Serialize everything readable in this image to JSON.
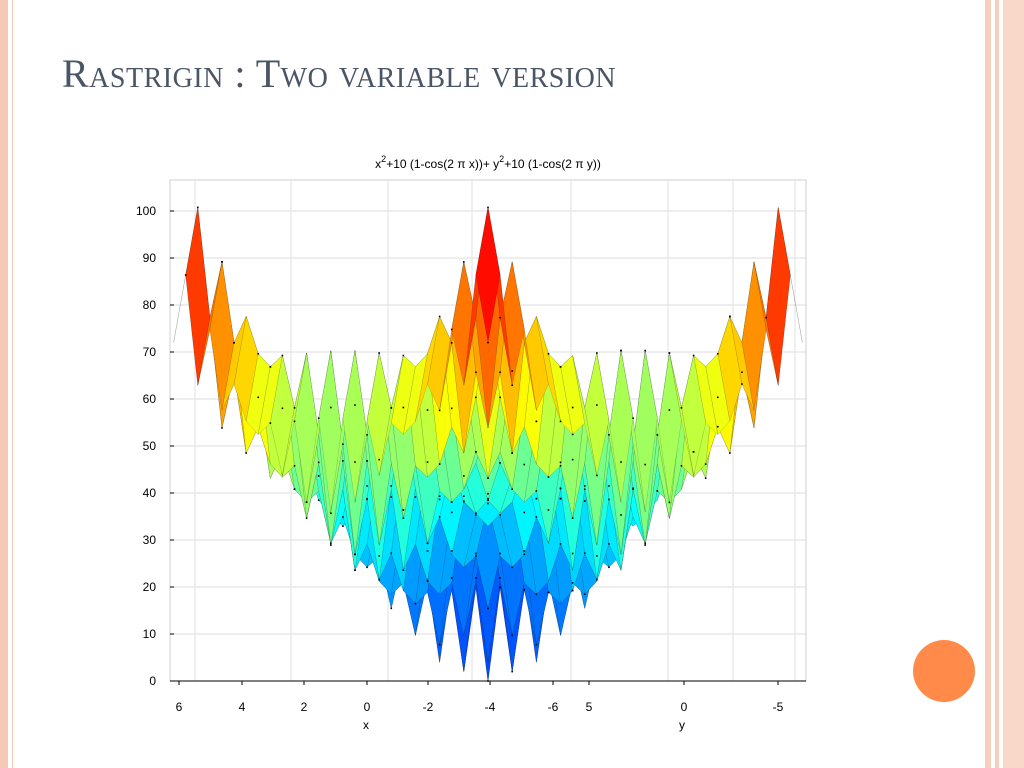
{
  "slide": {
    "title": "Rastrigin : Two variable version"
  },
  "colors": {
    "frame": "#f5c9b8",
    "accent_circle": "#ff8a4a",
    "title_color": "#4a5566"
  },
  "chart_data": {
    "type": "surface",
    "title_parts": {
      "x_base": "x",
      "x_exp": "2",
      "mid": "+10 (1-cos(2 π x))+ y",
      "y_exp": "2",
      "tail": "+10 (1-cos(2 π y))"
    },
    "xlabel": "x",
    "ylabel": "y",
    "zlim": [
      0,
      100
    ],
    "z_ticks": [
      "0",
      "10",
      "20",
      "30",
      "40",
      "50",
      "60",
      "70",
      "80",
      "90",
      "100"
    ],
    "x_ticks": [
      "6",
      "4",
      "2",
      "0",
      "-2",
      "-4",
      "-6"
    ],
    "y_ticks": [
      "5",
      "0",
      "-5"
    ],
    "x_range": [
      -6,
      6
    ],
    "y_range": [
      -6,
      6
    ],
    "grid": true,
    "colormap": "jet"
  }
}
